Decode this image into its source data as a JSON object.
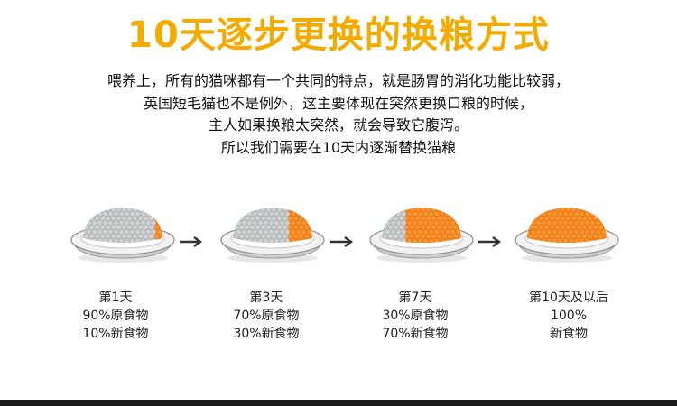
{
  "title": "10天逐步更换的换粮方式",
  "intro": [
    "喂养上，所有的猫咪都有一个共同的特点，就是肠胃的消化功能比较弱，",
    "英国短毛猫也不是例外，这主要体现在突然更换口粮的时候，",
    "主人如果换粮太突然，就会导致它腹泻。",
    "所以我们需要在10天内逐渐替换猫粮"
  ],
  "stages": [
    {
      "day": "第1天",
      "line1": "90%原食物",
      "line2": "10%新食物",
      "new_fraction": 0.1
    },
    {
      "day": "第3天",
      "line1": "70%原食物",
      "line2": "30%新食物",
      "new_fraction": 0.3
    },
    {
      "day": "第7天",
      "line1": "30%原食物",
      "line2": "70%新食物",
      "new_fraction": 0.7
    },
    {
      "day": "第10天及以后",
      "line1": "100%",
      "line2": "新食物",
      "new_fraction": 1.0
    }
  ],
  "colors": {
    "title": "#f3ab00",
    "old_food": "#b5b8b9",
    "new_food": "#f07c14",
    "bowl": "#d9d9d9",
    "arrow": "#333333",
    "footer": "#1b1b1b"
  },
  "icons": [
    "bowl-icon",
    "arrow-right-icon"
  ]
}
